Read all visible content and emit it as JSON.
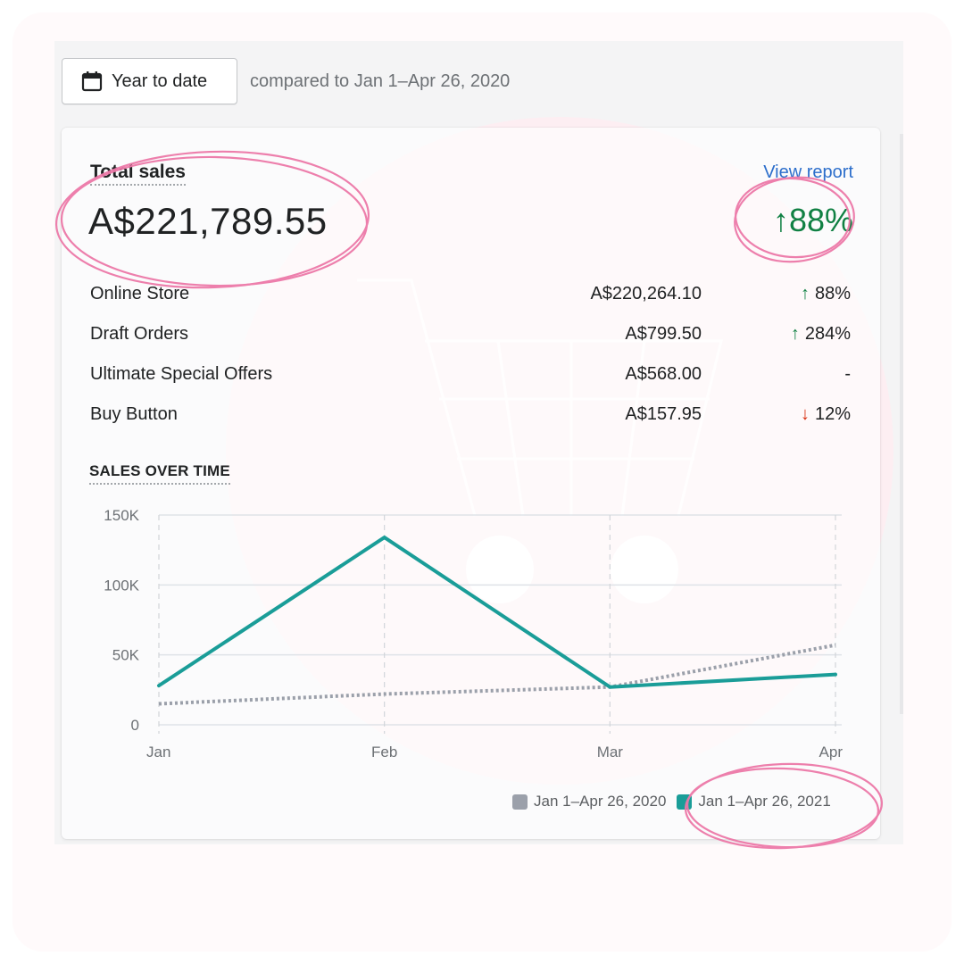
{
  "toolbar": {
    "date_range_label": "Year to date",
    "comparison_text": "compared to Jan 1–Apr 26, 2020",
    "calendar_icon": "calendar-icon"
  },
  "card": {
    "title": "Total sales",
    "view_report": "View report",
    "total_value": "A$221,789.55",
    "total_change": "88%",
    "total_change_direction": "up",
    "breakdown": [
      {
        "name": "Online Store",
        "amount": "A$220,264.10",
        "change": "88%",
        "direction": "up"
      },
      {
        "name": "Draft Orders",
        "amount": "A$799.50",
        "change": "284%",
        "direction": "up"
      },
      {
        "name": "Ultimate Special Offers",
        "amount": "A$568.00",
        "change": "-",
        "direction": "none"
      },
      {
        "name": "Buy Button",
        "amount": "A$157.95",
        "change": "12%",
        "direction": "down"
      }
    ],
    "section_title": "SALES OVER TIME"
  },
  "colors": {
    "current_series": "#1a9d98",
    "previous_series": "#9ba0aa",
    "positive": "#108043",
    "negative": "#d82c0d",
    "link": "#2c6ecb",
    "highlight_ring": "#ec79a8"
  },
  "chart_data": {
    "type": "line",
    "categories": [
      "Jan",
      "Feb",
      "Mar",
      "Apr"
    ],
    "ylim": [
      0,
      150000
    ],
    "yticks": [
      0,
      50000,
      100000,
      150000
    ],
    "ytick_labels": [
      "0",
      "50K",
      "100K",
      "150K"
    ],
    "grid": true,
    "legend_position": "bottom-right",
    "series": [
      {
        "name": "Jan 1–Apr 26, 2020",
        "style": "dotted",
        "values": [
          15000,
          22000,
          27000,
          57000
        ]
      },
      {
        "name": "Jan 1–Apr 26, 2021",
        "style": "solid",
        "values": [
          28000,
          134000,
          27000,
          36000
        ]
      }
    ]
  }
}
